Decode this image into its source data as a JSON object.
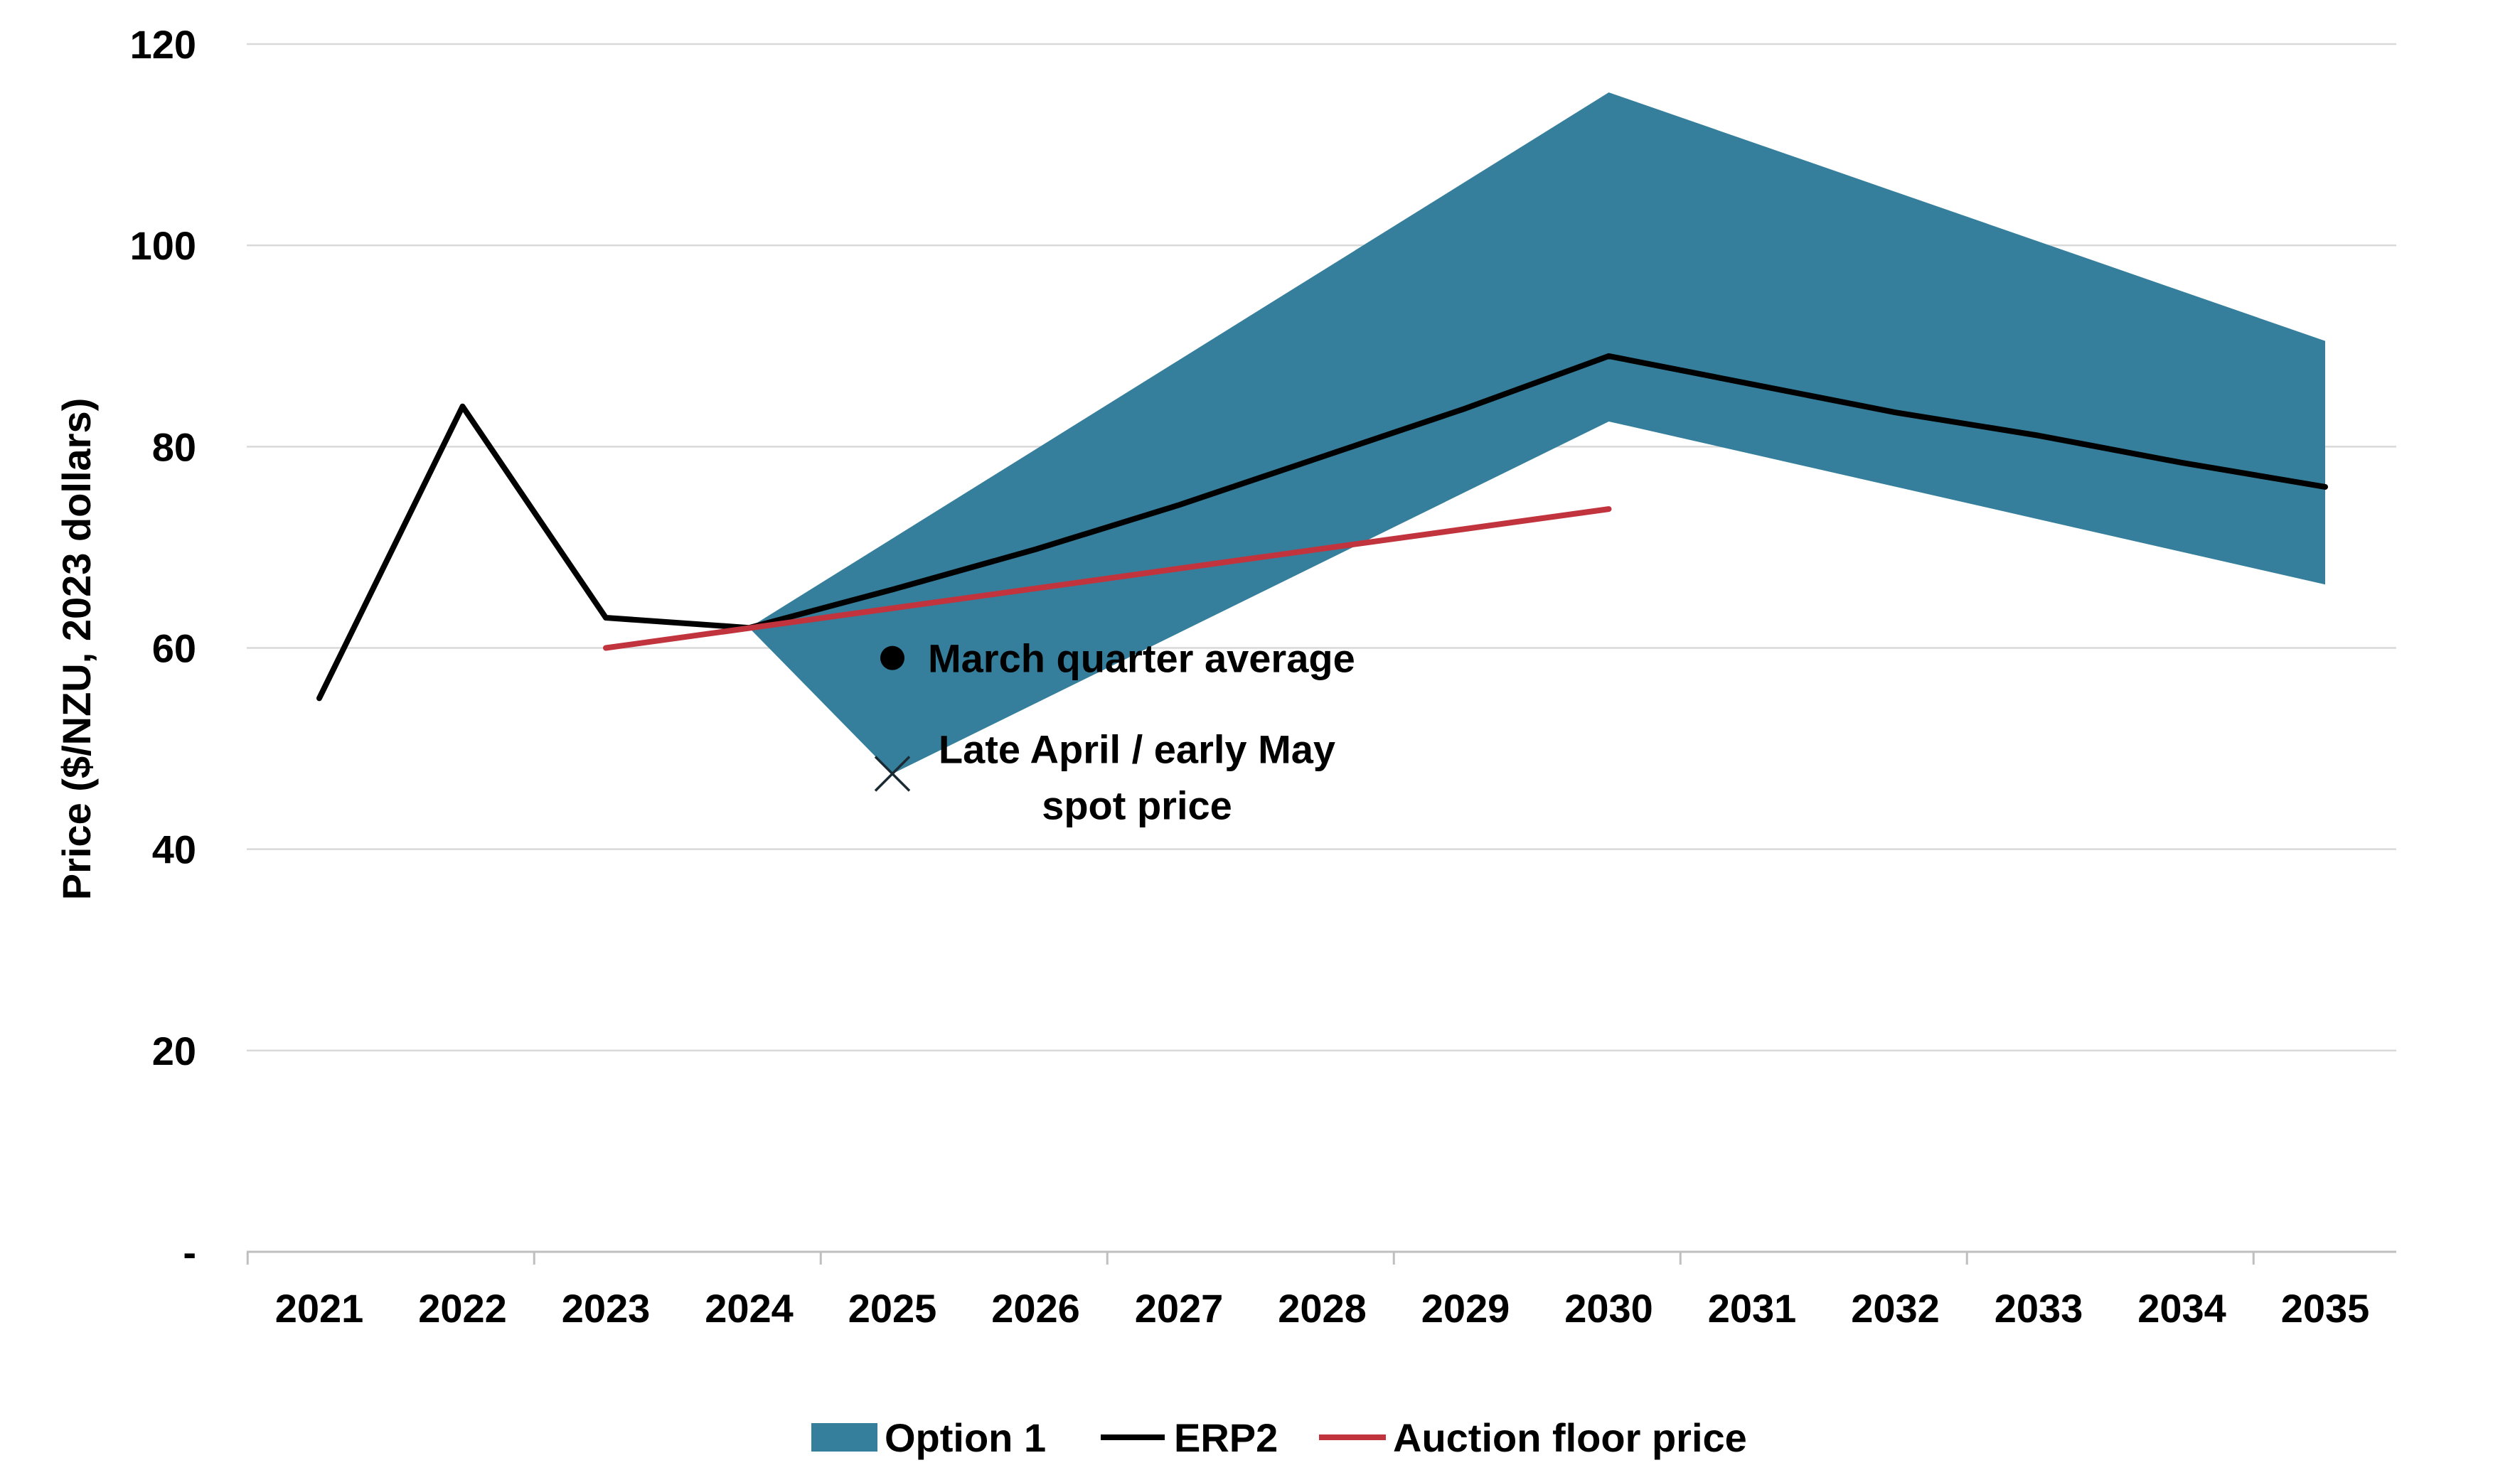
{
  "chart_data": {
    "type": "line",
    "title": "",
    "xlabel": "",
    "ylabel": "Price ($/NZU, 2023 dollars)",
    "ylim": [
      0,
      120
    ],
    "xlim": [
      2021,
      2035
    ],
    "categories": [
      "2021",
      "2022",
      "2023",
      "2024",
      "2025",
      "2026",
      "2027",
      "2028",
      "2029",
      "2030",
      "2031",
      "2032",
      "2033",
      "2034",
      "2035"
    ],
    "y_ticks": [
      {
        "value": 0,
        "label": "-"
      },
      {
        "value": 20,
        "label": "20"
      },
      {
        "value": 40,
        "label": "40"
      },
      {
        "value": 60,
        "label": "60"
      },
      {
        "value": 80,
        "label": "80"
      },
      {
        "value": 100,
        "label": "100"
      },
      {
        "value": 120,
        "label": "120"
      }
    ],
    "grid": true,
    "band": {
      "name": "Option 1",
      "color": "#367f9c",
      "upper": [
        [
          2024,
          62
        ],
        [
          2030,
          115.2
        ],
        [
          2035,
          90.5
        ]
      ],
      "lower": [
        [
          2024,
          62
        ],
        [
          2025,
          47.5
        ],
        [
          2030,
          82.5
        ],
        [
          2035,
          66.3
        ]
      ]
    },
    "series": [
      {
        "name": "ERP2",
        "color": "#000000",
        "points": [
          [
            2021,
            55
          ],
          [
            2022,
            84
          ],
          [
            2023,
            63
          ],
          [
            2024,
            62
          ],
          [
            2025,
            65.8
          ],
          [
            2026,
            69.8
          ],
          [
            2027,
            74.2
          ],
          [
            2028,
            79
          ],
          [
            2029,
            83.8
          ],
          [
            2030,
            89
          ],
          [
            2031,
            86.2
          ],
          [
            2032,
            83.4
          ],
          [
            2033,
            81.1
          ],
          [
            2034,
            78.4
          ],
          [
            2035,
            76
          ]
        ]
      },
      {
        "name": "Auction floor price",
        "color": "#c1343d",
        "points": [
          [
            2023,
            60
          ],
          [
            2030,
            73.8
          ]
        ]
      }
    ],
    "annotations": [
      {
        "name": "March quarter average",
        "marker": "circle",
        "x": 2025,
        "y": 59,
        "lines": [
          "March quarter average"
        ]
      },
      {
        "name": "Late April / early May spot price",
        "marker": "x",
        "x": 2025,
        "y": 47.5,
        "lines": [
          "Late April / early May",
          "spot price"
        ]
      }
    ],
    "legend": {
      "position": "bottom",
      "entries": [
        {
          "label": "Option 1",
          "kind": "patch",
          "color": "#367f9c"
        },
        {
          "label": "ERP2",
          "kind": "line",
          "color": "#000000"
        },
        {
          "label": "Auction floor price",
          "kind": "line",
          "color": "#c1343d"
        }
      ]
    }
  }
}
